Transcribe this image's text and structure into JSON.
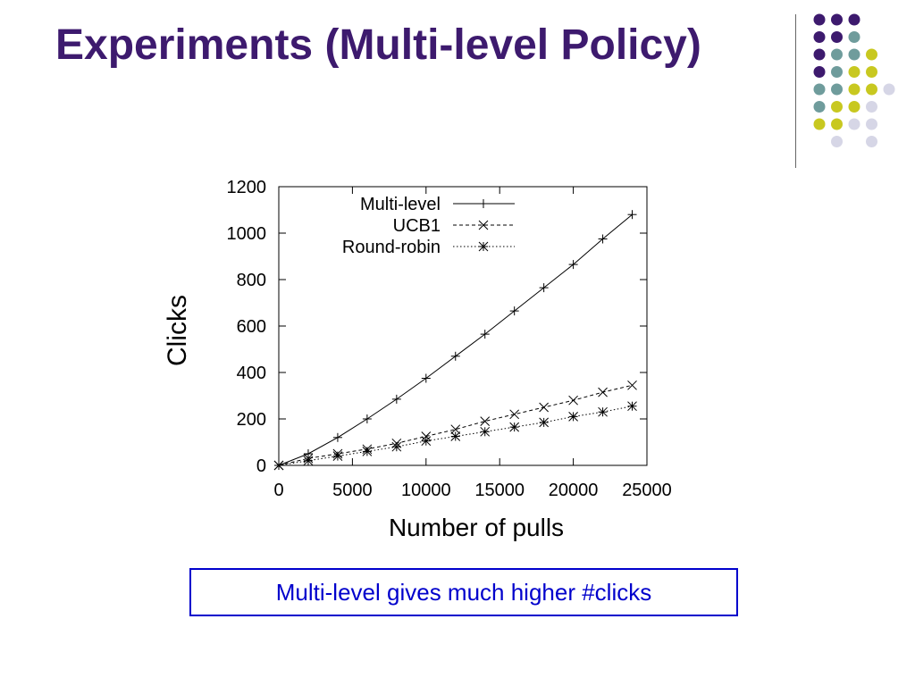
{
  "slide": {
    "title": "Experiments (Multi-level Policy)",
    "caption": "Multi-level gives much higher #clicks"
  },
  "decoration": {
    "dot_grid": [
      [
        "#3d1a6e",
        "#3d1a6e",
        "#3d1a6e",
        null
      ],
      [
        "#3d1a6e",
        "#3d1a6e",
        "#6f9c9c",
        null
      ],
      [
        "#3d1a6e",
        "#6f9c9c",
        "#6f9c9c",
        "#c8c820"
      ],
      [
        "#3d1a6e",
        "#6f9c9c",
        "#c8c820",
        "#c8c820"
      ],
      [
        "#6f9c9c",
        "#6f9c9c",
        "#c8c820",
        "#c8c820",
        "#d6d6e6"
      ],
      [
        "#6f9c9c",
        "#c8c820",
        "#c8c820",
        "#d6d6e6"
      ],
      [
        "#c8c820",
        "#c8c820",
        "#d6d6e6",
        "#d6d6e6"
      ],
      [
        null,
        "#d6d6e6",
        null,
        "#d6d6e6"
      ]
    ]
  },
  "chart_data": {
    "type": "line",
    "xlabel": "Number of pulls",
    "ylabel": "Clicks",
    "xlim": [
      0,
      25000
    ],
    "ylim": [
      0,
      1200
    ],
    "xticks": [
      0,
      5000,
      10000,
      15000,
      20000,
      25000
    ],
    "yticks": [
      0,
      200,
      400,
      600,
      800,
      1000,
      1200
    ],
    "legend_position": "top-left",
    "series": [
      {
        "name": "Multi-level",
        "marker": "plus",
        "line_style": "solid",
        "x": [
          0,
          2000,
          4000,
          6000,
          8000,
          10000,
          12000,
          14000,
          16000,
          18000,
          20000,
          22000,
          24000
        ],
        "y": [
          0,
          50,
          120,
          200,
          285,
          375,
          470,
          565,
          665,
          765,
          865,
          975,
          1080
        ]
      },
      {
        "name": "UCB1",
        "marker": "x",
        "line_style": "dashed",
        "x": [
          0,
          2000,
          4000,
          6000,
          8000,
          10000,
          12000,
          14000,
          16000,
          18000,
          20000,
          22000,
          24000
        ],
        "y": [
          0,
          30,
          50,
          70,
          95,
          125,
          155,
          190,
          220,
          250,
          280,
          315,
          345
        ]
      },
      {
        "name": "Round-robin",
        "marker": "star",
        "line_style": "dotted",
        "x": [
          0,
          2000,
          4000,
          6000,
          8000,
          10000,
          12000,
          14000,
          16000,
          18000,
          20000,
          22000,
          24000
        ],
        "y": [
          0,
          20,
          40,
          60,
          80,
          105,
          125,
          145,
          165,
          185,
          210,
          230,
          255
        ]
      }
    ]
  }
}
